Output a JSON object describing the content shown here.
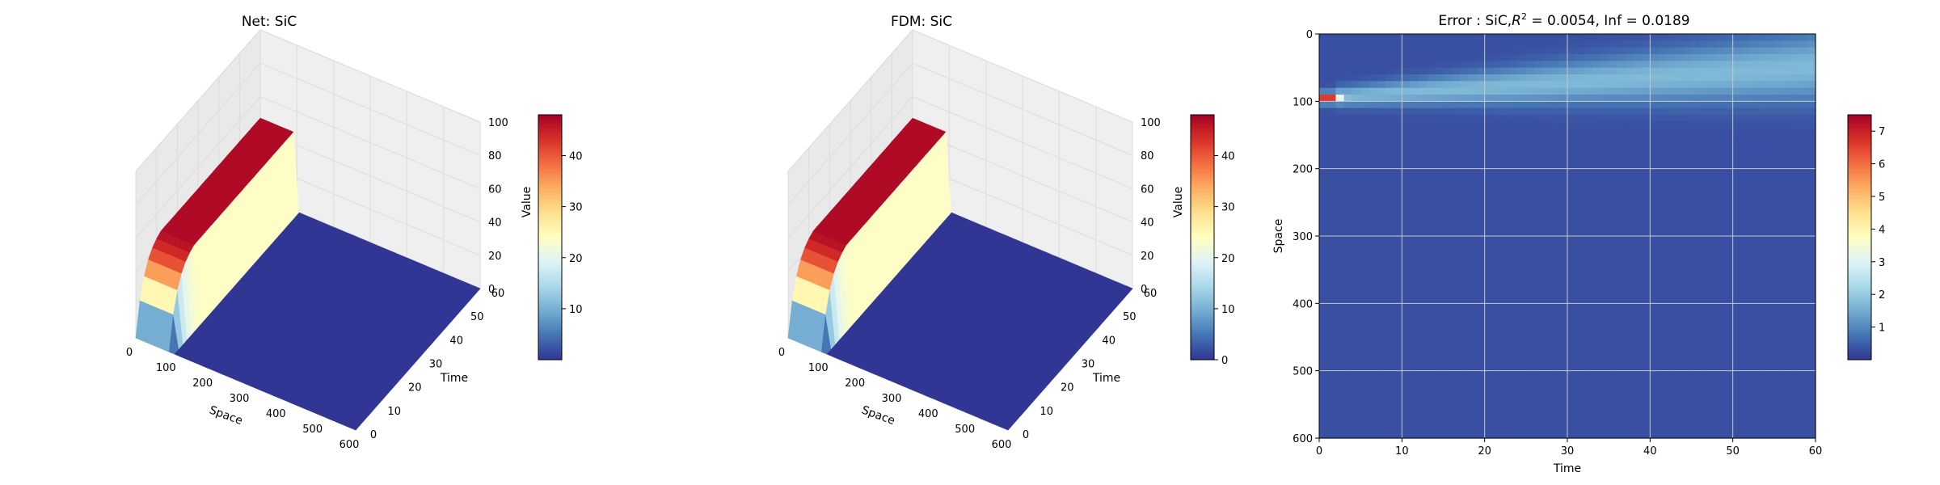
{
  "colormap": [
    "#313695",
    "#4575b4",
    "#74add1",
    "#abd9e9",
    "#e0f3f8",
    "#ffffbf",
    "#fee090",
    "#fdae61",
    "#f46d43",
    "#d73027",
    "#a50026"
  ],
  "chart_data": [
    {
      "type": "surface",
      "title": "Net: SiC",
      "xlabel": "Space",
      "ylabel": "Time",
      "zlabel": "Value",
      "xlim": [
        0,
        600
      ],
      "ylim": [
        0,
        60
      ],
      "zlim": [
        0,
        100
      ],
      "xticks": [
        "0",
        "100",
        "200",
        "300",
        "400",
        "500",
        "600"
      ],
      "yticks": [
        "0",
        "10",
        "20",
        "30",
        "40",
        "50",
        "60"
      ],
      "zticks": [
        "0",
        "20",
        "40",
        "60",
        "80",
        "100"
      ],
      "colorbar": {
        "range": [
          0,
          48
        ],
        "ticks": [
          "10",
          "20",
          "30",
          "40"
        ]
      },
      "description_values": {
        "plateau_value": 47,
        "front_space": 100,
        "bottom_value_beyond_front": 0
      }
    },
    {
      "type": "surface",
      "title": "FDM: SiC",
      "xlabel": "Space",
      "ylabel": "Time",
      "zlabel": "Value",
      "xlim": [
        0,
        600
      ],
      "ylim": [
        0,
        60
      ],
      "zlim": [
        0,
        100
      ],
      "xticks": [
        "0",
        "100",
        "200",
        "300",
        "400",
        "500",
        "600"
      ],
      "yticks": [
        "0",
        "10",
        "20",
        "30",
        "40",
        "50",
        "60"
      ],
      "zticks": [
        "0",
        "20",
        "40",
        "60",
        "80",
        "100"
      ],
      "colorbar": {
        "range": [
          0,
          48
        ],
        "ticks": [
          "0",
          "10",
          "20",
          "30",
          "40"
        ]
      },
      "description_values": {
        "plateau_value": 47,
        "front_space": 100,
        "bottom_value_beyond_front": 0
      }
    },
    {
      "type": "heatmap",
      "title_prefix": "Error : SiC,",
      "title_r": "R",
      "title_sup": "2",
      "title_suffix": " = 0.0054, Inf = 0.0189",
      "xlabel": "Time",
      "ylabel": "Space",
      "xlim": [
        0,
        60
      ],
      "ylim": [
        600,
        0
      ],
      "xticks": [
        "0",
        "10",
        "20",
        "30",
        "40",
        "50",
        "60"
      ],
      "yticks": [
        "0",
        "100",
        "200",
        "300",
        "400",
        "500",
        "600"
      ],
      "grid": true,
      "colorbar": {
        "range": [
          0,
          7.5
        ],
        "ticks": [
          "1",
          "2",
          "3",
          "4",
          "5",
          "6",
          "7"
        ]
      },
      "features": {
        "background_error": 0.3,
        "peak_error": 7.3,
        "peak_time": 1,
        "peak_space": 95
      }
    }
  ]
}
